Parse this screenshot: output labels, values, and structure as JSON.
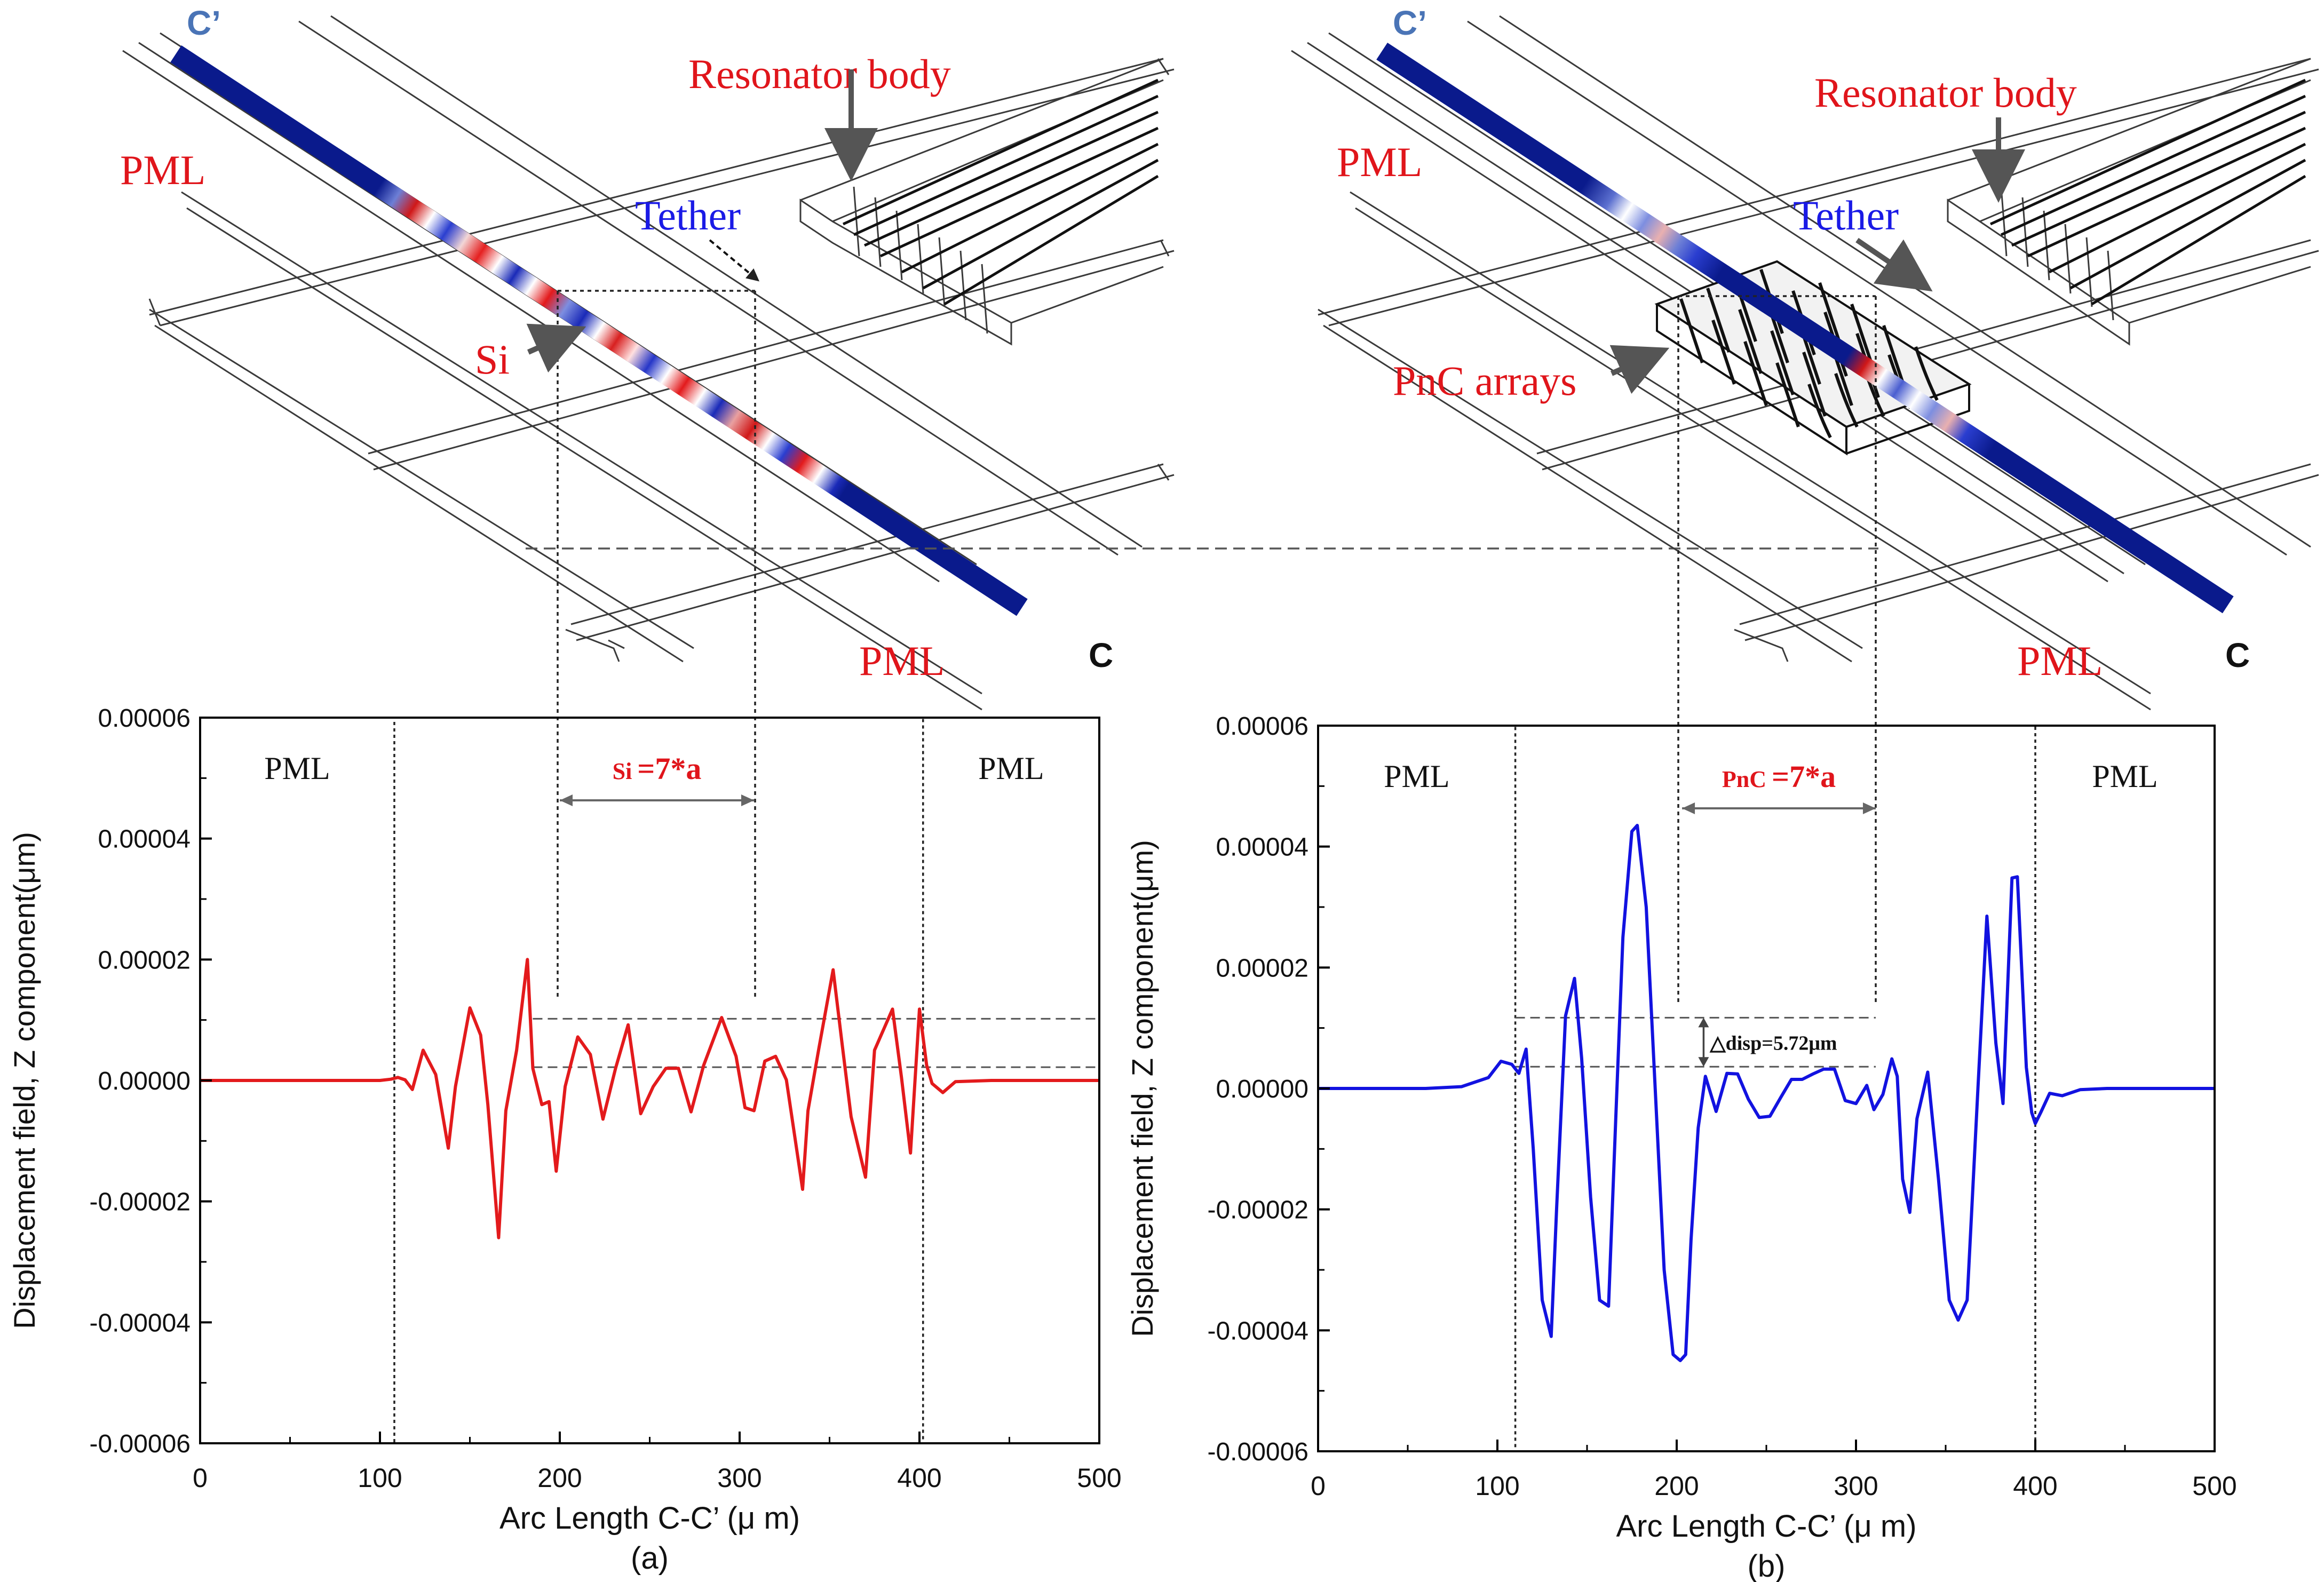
{
  "figure": {
    "panels": [
      {
        "id": "a",
        "caption": "(a)",
        "model": {
          "corner_top": "C’",
          "corner_bottom": "C",
          "labels": {
            "pml_left": "PML",
            "pml_right": "PML",
            "resonator": "Resonator body",
            "tether": "Tether",
            "feature": "Si"
          },
          "has_pnc": false
        },
        "chart": {
          "xlabel": "Arc Length C-C’ (μ m)",
          "ylabel": "Displacement field, Z component(μm)",
          "region_left": "PML",
          "region_right": "PML",
          "span_label_small": "Si",
          "span_label_big": "=7*a",
          "delta_label": ""
        }
      },
      {
        "id": "b",
        "caption": "(b)",
        "model": {
          "corner_top": "C’",
          "corner_bottom": "C",
          "labels": {
            "pml_left": "PML",
            "pml_right": "PML",
            "resonator": "Resonator body",
            "tether": "Tether",
            "feature": "PnC arrays"
          },
          "has_pnc": true
        },
        "chart": {
          "xlabel": "Arc Length C-C’ (μ m)",
          "ylabel": "Displacement field, Z component(μm)",
          "region_left": "PML",
          "region_right": "PML",
          "span_label_small": "PnC",
          "span_label_big": "=7*a",
          "delta_label": "△disp=5.72μm"
        }
      }
    ]
  },
  "colors": {
    "series_a": "#e31a1c",
    "series_b": "#1212e0",
    "annotation_red": "#e0151b",
    "annotation_blue": "#1a1ae6",
    "corner_label": "#4a74b6",
    "beam_base": "#0a1a8c"
  },
  "chart_data": [
    {
      "type": "line",
      "panel": "a",
      "xlabel": "Arc Length C-C’ (μ m)",
      "ylabel": "Displacement field, Z component(μm)",
      "xlim": [
        0,
        500
      ],
      "ylim": [
        -6e-05,
        6e-05
      ],
      "x_ticks": [
        "0",
        "100",
        "200",
        "300",
        "400",
        "500"
      ],
      "y_ticks": [
        "0.00006",
        "0.00004",
        "0.00002",
        "0.00000",
        "-0.00002",
        "-0.00004",
        "-0.00006"
      ],
      "regions": [
        {
          "label": "PML",
          "from": 0,
          "to": 108
        },
        {
          "label": "PML",
          "from": 402,
          "to": 500
        }
      ],
      "span": {
        "label": "Si =7*a",
        "from": 200,
        "to": 308
      },
      "reference_lines": [
        1.02e-05,
        2.2e-06
      ],
      "series": [
        {
          "x": [
            0,
            50,
            100,
            106,
            110,
            114,
            118,
            124,
            131,
            138,
            142,
            150,
            156,
            160,
            166,
            170,
            176,
            182,
            185,
            190,
            194,
            198,
            203,
            210,
            217,
            224,
            231,
            238,
            245,
            252,
            259,
            266,
            273,
            280,
            290,
            298,
            303,
            308,
            314,
            320,
            326,
            335,
            338,
            344,
            352,
            357,
            362,
            370,
            375,
            385,
            390,
            395,
            400,
            404,
            407,
            413,
            420,
            440,
            460,
            500
          ],
          "y": [
            0,
            0,
            0,
            2e-07,
            5e-07,
            1e-07,
            -1.5e-06,
            5e-06,
            1e-06,
            -1.12e-05,
            -1e-06,
            1.2e-05,
            7.5e-06,
            -4e-06,
            -2.6e-05,
            -5e-06,
            5e-06,
            2e-05,
            2e-06,
            -4e-06,
            -3.5e-06,
            -1.5e-05,
            -1e-06,
            7.2e-06,
            4.3e-06,
            -6.4e-06,
            2e-06,
            9.2e-06,
            -5.5e-06,
            -1e-06,
            2e-06,
            2e-06,
            -5.2e-06,
            2.5e-06,
            1.04e-05,
            4e-06,
            -4.5e-06,
            -5e-06,
            3.2e-06,
            4e-06,
            1e-07,
            -1.8e-05,
            -5e-06,
            5.2e-06,
            1.83e-05,
            6e-06,
            -6e-06,
            -1.6e-05,
            5e-06,
            1.18e-05,
            5e-07,
            -1.2e-05,
            1.18e-05,
            2.5e-06,
            -5e-07,
            -2e-06,
            -2e-07,
            0,
            0,
            0
          ]
        }
      ]
    },
    {
      "type": "line",
      "panel": "b",
      "xlabel": "Arc Length C-C’ (μ m)",
      "ylabel": "Displacement field, Z component(μm)",
      "xlim": [
        0,
        500
      ],
      "ylim": [
        -6e-05,
        6e-05
      ],
      "x_ticks": [
        "0",
        "100",
        "200",
        "300",
        "400",
        "500"
      ],
      "y_ticks": [
        "0.00006",
        "0.00004",
        "0.00002",
        "0.00000",
        "-0.00002",
        "-0.00004",
        "-0.00006"
      ],
      "regions": [
        {
          "label": "PML",
          "from": 0,
          "to": 110
        },
        {
          "label": "PML",
          "from": 400,
          "to": 500
        }
      ],
      "span": {
        "label": "PnC =7*a",
        "from": 203,
        "to": 311
      },
      "reference_lines": [
        1.17e-05,
        3.6e-06
      ],
      "annotation": {
        "label": "△disp=5.72μm",
        "x": 215
      },
      "series": [
        {
          "x": [
            0,
            60,
            80,
            95,
            102,
            108,
            112,
            116,
            120,
            125,
            130,
            133,
            138,
            143,
            147,
            152,
            157,
            162,
            166,
            170,
            175,
            178,
            183,
            188,
            193,
            198,
            202,
            205,
            208,
            212,
            216,
            222,
            228,
            234,
            240,
            246,
            252,
            258,
            264,
            270,
            276,
            282,
            288,
            294,
            300,
            306,
            310,
            315,
            320,
            323,
            326,
            330,
            334,
            340,
            346,
            352,
            357,
            362,
            368,
            373,
            378,
            382,
            387,
            390,
            395,
            398,
            400,
            403,
            408,
            415,
            425,
            440,
            460,
            500
          ],
          "y": [
            0,
            0,
            3e-07,
            1.8e-06,
            4.5e-06,
            4e-06,
            2.5e-06,
            6.5e-06,
            -1e-05,
            -3.5e-05,
            -4.1e-05,
            -2e-05,
            1.2e-05,
            1.82e-05,
            5e-06,
            -1.8e-05,
            -3.5e-05,
            -3.6e-05,
            -5e-06,
            2.5e-05,
            4.25e-05,
            4.35e-05,
            3e-05,
            0.0,
            -3e-05,
            -4.4e-05,
            -4.5e-05,
            -4.4e-05,
            -2.5e-05,
            -6.5e-06,
            2e-06,
            -3.8e-06,
            2.5e-06,
            2.4e-06,
            -1.8e-06,
            -4.8e-06,
            -4.6e-06,
            -1.5e-06,
            1.5e-06,
            1.5e-06,
            2.4e-06,
            3.2e-06,
            3.2e-06,
            -2e-06,
            -2.5e-06,
            5e-07,
            -3.5e-06,
            -1e-06,
            4.9e-06,
            2e-06,
            -1.5e-05,
            -2.05e-05,
            -5e-06,
            2.7e-06,
            -1.5e-05,
            -3.5e-05,
            -3.83e-05,
            -3.5e-05,
            0.0,
            2.85e-05,
            7.5e-06,
            -2.5e-06,
            3.48e-05,
            3.5e-05,
            3.5e-06,
            -4e-06,
            -5.8e-06,
            -4e-06,
            -8e-07,
            -1.2e-06,
            -2e-07,
            0,
            0,
            0
          ]
        }
      ]
    }
  ]
}
